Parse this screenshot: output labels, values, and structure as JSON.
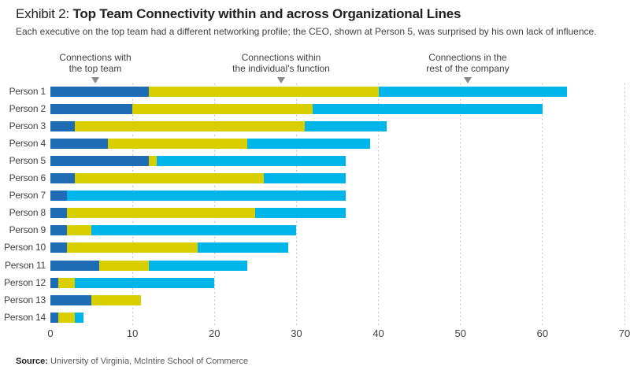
{
  "header": {
    "exhibit_label": "Exhibit 2:",
    "title": "Top Team Connectivity within and across Organizational Lines",
    "subtitle": "Each executive on the top team had a different networking profile; the CEO, shown at Person 5, was surprised by his own lack of influence."
  },
  "annotations": [
    {
      "line1": "Connections with",
      "line2": "the top team",
      "at_value": 5.5
    },
    {
      "line1": "Connections within",
      "line2": "the individual's function",
      "at_value": 28
    },
    {
      "line1": "Connections in the",
      "line2": "rest of the company",
      "at_value": 51
    }
  ],
  "chart_data": {
    "type": "bar",
    "orientation": "horizontal",
    "stacked": true,
    "title": "Top Team Connectivity within and across Organizational Lines",
    "categories": [
      "Person 1",
      "Person 2",
      "Person 3",
      "Person 4",
      "Person 5",
      "Person 6",
      "Person 7",
      "Person 8",
      "Person 9",
      "Person 10",
      "Person 11",
      "Person 12",
      "Person 13",
      "Person 14"
    ],
    "series": [
      {
        "name": "Connections with the top team",
        "color": "#1e6cb3",
        "values": [
          12,
          10,
          3,
          7,
          12,
          3,
          2,
          2,
          2,
          2,
          6,
          1,
          5,
          1
        ]
      },
      {
        "name": "Connections within the individual's function",
        "color": "#d9ce00",
        "values": [
          28,
          22,
          28,
          17,
          1,
          23,
          0,
          23,
          3,
          16,
          6,
          2,
          6,
          2
        ]
      },
      {
        "name": "Connections in the rest of the company",
        "color": "#00b5ea",
        "values": [
          23,
          28,
          10,
          15,
          23,
          10,
          34,
          11,
          25,
          11,
          12,
          17,
          0,
          1
        ]
      }
    ],
    "totals": [
      63,
      60,
      41,
      39,
      36,
      36,
      36,
      36,
      30,
      29,
      24,
      20,
      11,
      4
    ],
    "xlim": [
      0,
      70
    ],
    "x_ticks": [
      0,
      10,
      20,
      30,
      40,
      50,
      60,
      70
    ],
    "grid": "dotted vertical gridlines at 10..70",
    "legend_position": "annotated arrows above plot"
  },
  "footer": {
    "source_label": "Source:",
    "source_text": "University of Virginia, McIntire School of Commerce"
  }
}
